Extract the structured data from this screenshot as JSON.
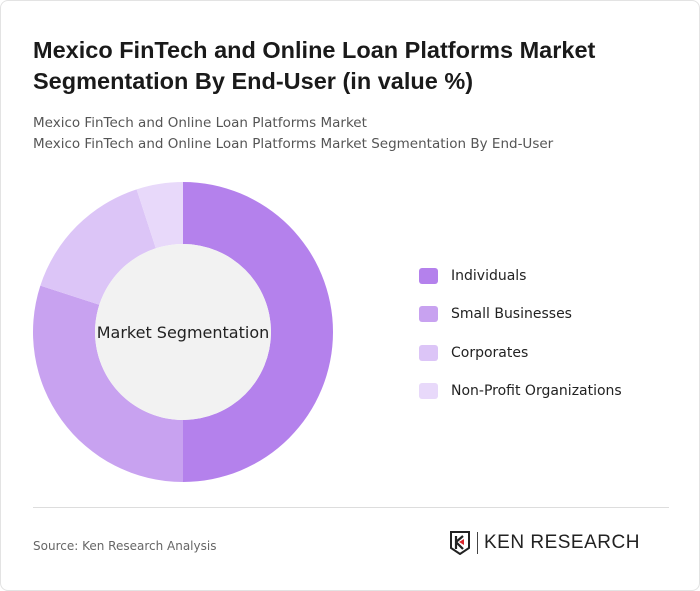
{
  "title": "Mexico FinTech and Online Loan Platforms Market Segmentation By End-User (in value %)",
  "subtitle1": "Mexico FinTech and Online Loan Platforms Market",
  "subtitle2": "Mexico FinTech and Online Loan Platforms Market Segmentation By End-User",
  "source": "Source: Ken Research Analysis",
  "logo_text": "KEN RESEARCH",
  "chart_data": {
    "type": "pie",
    "donut": true,
    "center_label": "Market Segmentation",
    "legend_position": "right",
    "categories": [
      "Individuals",
      "Small Businesses",
      "Corporates",
      "Non-Profit Organizations"
    ],
    "values": [
      50,
      30,
      15,
      5
    ],
    "colors": [
      "#b481ec",
      "#c8a2f0",
      "#dcc5f7",
      "#e8d9fa"
    ]
  }
}
